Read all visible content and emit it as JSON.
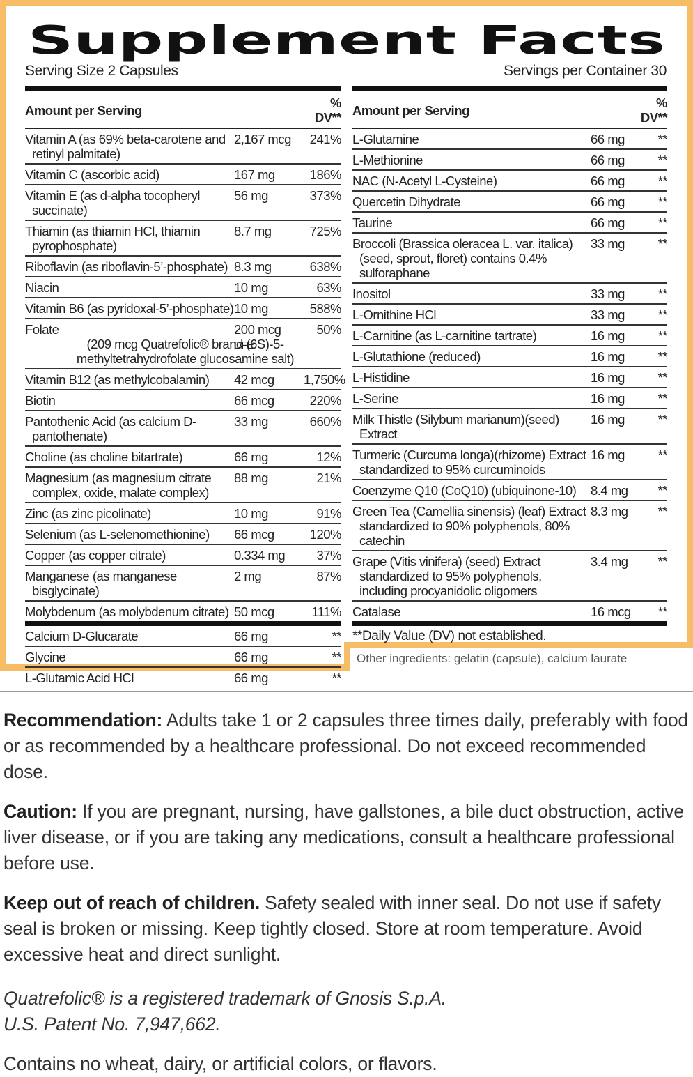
{
  "title": "Supplement Facts",
  "serving_size": "Serving Size 2 Capsules",
  "servings_per_container": "Servings per Container 30",
  "left_table": {
    "header": [
      "Amount per Serving",
      "% DV**"
    ],
    "sections": [
      {
        "rows": [
          {
            "name": "Vitamin A (as 69% beta-carotene and retinyl palmitate)",
            "amount": "2,167 mcg",
            "dv": "241%"
          },
          {
            "name": "Vitamin C (ascorbic acid)",
            "amount": "167 mg",
            "dv": "186%"
          },
          {
            "name": "Vitamin E (as d-alpha tocopheryl succinate)",
            "amount": "56 mg",
            "dv": "373%"
          },
          {
            "name": "Thiamin (as thiamin HCl, thiamin pyrophosphate)",
            "amount": "8.7 mg",
            "dv": "725%"
          },
          {
            "name": "Riboflavin (as riboflavin-5’-phosphate)",
            "amount": "8.3 mg",
            "dv": "638%"
          },
          {
            "name": "Niacin",
            "amount": "10 mg",
            "dv": "63%"
          },
          {
            "name": "Vitamin B6 (as pyridoxal-5’-phosphate)",
            "amount": "10 mg",
            "dv": "588%"
          },
          {
            "name": "Folate",
            "amount": "200 mcg",
            "amount_unit": "DFE",
            "dv": "50%",
            "detail": "(209 mcg Quatrefolic® brand (6S)-5-methyltetrahydrofolate glucosamine salt)"
          },
          {
            "name": "Vitamin B12 (as methylcobalamin)",
            "amount": "42 mcg",
            "dv": "1,750%"
          },
          {
            "name": "Biotin",
            "amount": "66 mcg",
            "dv": "220%"
          },
          {
            "name": "Pantothenic Acid (as calcium D-pantothenate)",
            "amount": "33 mg",
            "dv": "660%"
          },
          {
            "name": "Choline (as choline bitartrate)",
            "amount": "66 mg",
            "dv": "12%"
          },
          {
            "name": "Magnesium (as magnesium citrate complex, oxide, malate complex)",
            "amount": "88 mg",
            "dv": "21%"
          },
          {
            "name": "Zinc (as zinc picolinate)",
            "amount": "10 mg",
            "dv": "91%"
          },
          {
            "name": "Selenium (as L-selenomethionine)",
            "amount": "66 mcg",
            "dv": "120%"
          },
          {
            "name": "Copper (as copper citrate)",
            "amount": "0.334 mg",
            "dv": "37%"
          },
          {
            "name": "Manganese (as manganese bisglycinate)",
            "amount": "2 mg",
            "dv": "87%"
          },
          {
            "name": "Molybdenum (as molybdenum citrate)",
            "amount": "50 mcg",
            "dv": "111%"
          }
        ]
      },
      {
        "rows": [
          {
            "name": "Calcium D-Glucarate",
            "amount": "66 mg",
            "dv": "**"
          },
          {
            "name": "Glycine",
            "amount": "66 mg",
            "dv": "**"
          },
          {
            "name": "L-Glutamic Acid HCl",
            "amount": "66 mg",
            "dv": "**"
          }
        ]
      }
    ]
  },
  "right_table": {
    "header": [
      "Amount per Serving",
      "% DV**"
    ],
    "rows": [
      {
        "name": "L-Glutamine",
        "amount": "66 mg",
        "dv": "**"
      },
      {
        "name": "L-Methionine",
        "amount": "66 mg",
        "dv": "**"
      },
      {
        "name": "NAC (N-Acetyl L-Cysteine)",
        "amount": "66 mg",
        "dv": "**"
      },
      {
        "name": "Quercetin Dihydrate",
        "amount": "66 mg",
        "dv": "**"
      },
      {
        "name": "Taurine",
        "amount": "66 mg",
        "dv": "**"
      },
      {
        "name": "Broccoli (Brassica oleracea L. var. italica) (seed, sprout, floret) contains 0.4% sulforaphane",
        "amount": "33 mg",
        "dv": "**"
      },
      {
        "name": "Inositol",
        "amount": "33 mg",
        "dv": "**"
      },
      {
        "name": "L-Ornithine HCl",
        "amount": "33 mg",
        "dv": "**"
      },
      {
        "name": "L-Carnitine (as L-carnitine tartrate)",
        "amount": "16 mg",
        "dv": "**"
      },
      {
        "name": "L-Glutathione (reduced)",
        "amount": "16 mg",
        "dv": "**"
      },
      {
        "name": "L-Histidine",
        "amount": "16 mg",
        "dv": "**"
      },
      {
        "name": "L-Serine",
        "amount": "16 mg",
        "dv": "**"
      },
      {
        "name": "Milk Thistle (Silybum marianum)(seed) Extract",
        "amount": "16 mg",
        "dv": "**"
      },
      {
        "name": "Turmeric (Curcuma longa)(rhizome) Extract standardized to 95% curcuminoids",
        "amount": "16 mg",
        "dv": "**"
      },
      {
        "name": "Coenzyme Q10 (CoQ10) (ubiquinone-10)",
        "amount": "8.4 mg",
        "dv": "**"
      },
      {
        "name": "Green Tea (Camellia sinensis) (leaf) Extract standardized to 90% polyphenols, 80% catechin",
        "amount": "8.3 mg",
        "dv": "**"
      },
      {
        "name": "Grape (Vitis vinifera) (seed) Extract standardized to 95% polyphenols, including procyanidolic oligomers",
        "amount": "3.4 mg",
        "dv": "**"
      },
      {
        "name": "Catalase",
        "amount": "16 mcg",
        "dv": "**"
      }
    ]
  },
  "footnote": "**Daily Value (DV) not established.",
  "other_ingredients": "Other ingredients: gelatin (capsule), calcium laurate",
  "notes": [
    {
      "label": "Recommendation:",
      "text": "Adults take 1 or 2 capsules three times daily, preferably with food or as recommended by a healthcare professional. Do not exceed recommended dose."
    },
    {
      "label": "Caution:",
      "text": "If you are pregnant, nursing, have gallstones, a bile duct obstruction, active liver disease, or if you are taking any medications, consult a healthcare professional before use."
    },
    {
      "label": "Keep out of reach of children.",
      "text": "Safety sealed with inner seal. Do not use if safety seal is broken or missing. Keep tightly closed. Store at room temperature. Avoid excessive heat and direct sunlight."
    }
  ],
  "trademark": [
    "Quatrefolic® is a registered trademark of Gnosis S.p.A.",
    "U.S. Patent No. 7,947,662."
  ],
  "final_note": "Contains no wheat, dairy, or artificial colors, or flavors."
}
